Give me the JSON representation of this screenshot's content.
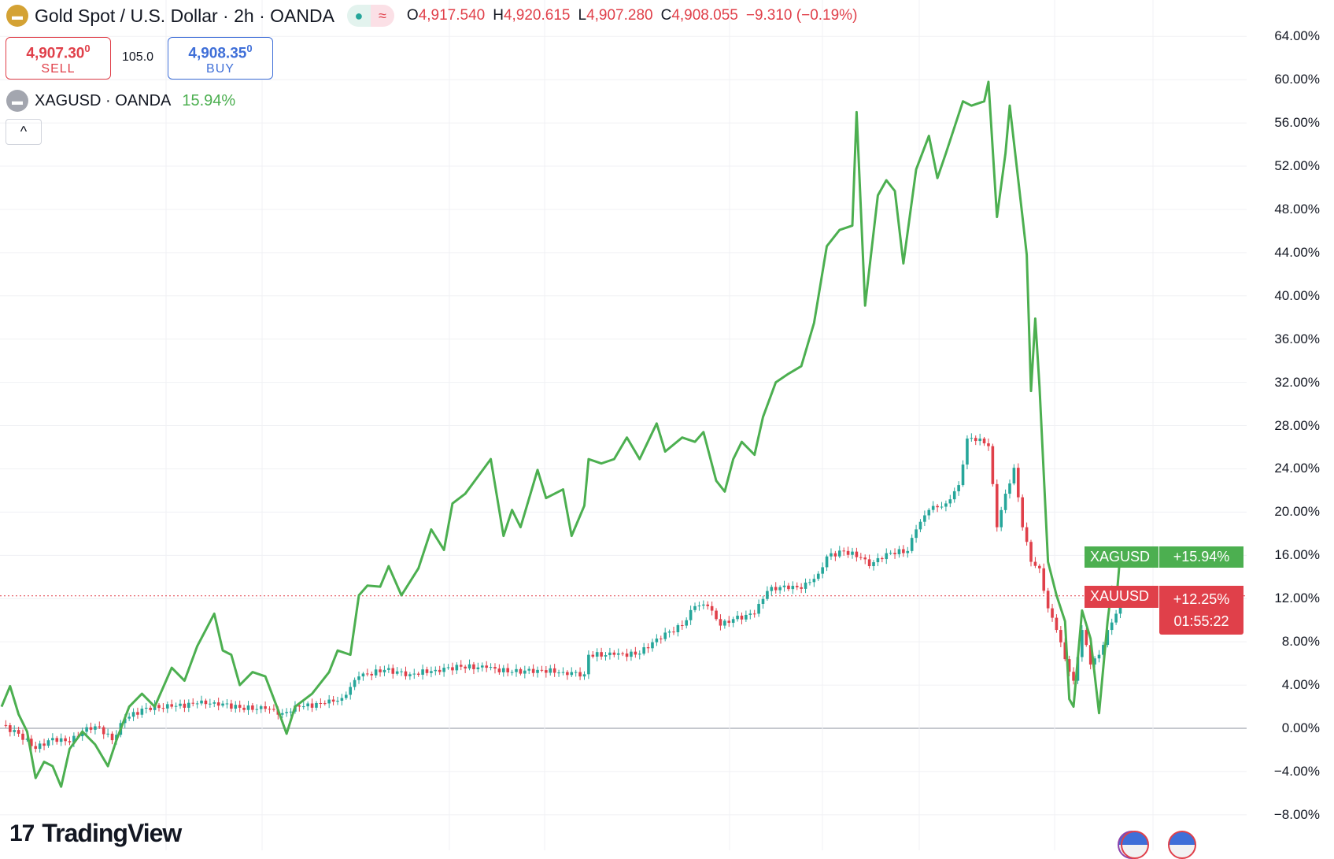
{
  "header": {
    "title": "Gold Spot / U.S. Dollar · 2h · OANDA",
    "open_label": "O",
    "open": "4,917.540",
    "high_label": "H",
    "high": "4,920.615",
    "low_label": "L",
    "low": "4,907.280",
    "close_label": "C",
    "close": "4,908.055",
    "change": "−9.310 (−0.19%)",
    "status_dot": "market-open-dot",
    "pill_icon": "≈"
  },
  "trade": {
    "sell_price": "4,907.30",
    "sell_sup": "0",
    "sell_label": "SELL",
    "spread": "105.0",
    "buy_price": "4,908.35",
    "buy_sup": "0",
    "buy_label": "BUY"
  },
  "compare": {
    "symbol": "XAGUSD · OANDA",
    "value": "15.94%"
  },
  "collapse_icon": "^",
  "badges": {
    "xag": {
      "symbol": "XAGUSD",
      "value": "+15.94%"
    },
    "xau": {
      "symbol": "XAUUSD",
      "value": "+12.25%",
      "countdown": "01:55:22"
    }
  },
  "brand": {
    "logo_text": "TV",
    "name": "TradingView"
  },
  "colors": {
    "silver": "#4caf50",
    "gold_up": "#26a69a",
    "gold_down": "#e0404a",
    "accent_red": "#e0404a",
    "accent_blue": "#3f6fd8"
  },
  "chart_data": {
    "type": "line",
    "yaxis": {
      "scale": "percent",
      "ylim": [
        -8,
        64
      ],
      "ticks": [
        "64.00%",
        "60.00%",
        "56.00%",
        "52.00%",
        "48.00%",
        "44.00%",
        "40.00%",
        "36.00%",
        "32.00%",
        "28.00%",
        "24.00%",
        "20.00%",
        "16.00%",
        "12.00%",
        "8.00%",
        "4.00%",
        "0.00%",
        "−4.00%",
        "−8.00%"
      ],
      "tick_values": [
        64,
        60,
        56,
        52,
        48,
        44,
        40,
        36,
        32,
        28,
        24,
        20,
        16,
        12,
        8,
        4,
        0,
        -4,
        -8
      ]
    },
    "grid": true,
    "series": [
      {
        "name": "XAGUSD",
        "style": "line",
        "points": [
          [
            0,
            2.0
          ],
          [
            2,
            3.9
          ],
          [
            4,
            1.3
          ],
          [
            6,
            -0.3
          ],
          [
            8,
            -4.6
          ],
          [
            10,
            -3.1
          ],
          [
            12,
            -3.5
          ],
          [
            14,
            -5.4
          ],
          [
            16,
            -1.9
          ],
          [
            19,
            -0.3
          ],
          [
            22,
            -1.5
          ],
          [
            25,
            -3.5
          ],
          [
            27,
            -1.1
          ],
          [
            30,
            2.0
          ],
          [
            33,
            3.2
          ],
          [
            36,
            2.0
          ],
          [
            40,
            5.6
          ],
          [
            43,
            4.4
          ],
          [
            46,
            7.6
          ],
          [
            48,
            9.1
          ],
          [
            50,
            10.6
          ],
          [
            52,
            7.2
          ],
          [
            54,
            6.8
          ],
          [
            56,
            4.0
          ],
          [
            59,
            5.2
          ],
          [
            62,
            4.8
          ],
          [
            65,
            1.7
          ],
          [
            67,
            -0.5
          ],
          [
            69,
            2.0
          ],
          [
            73,
            3.2
          ],
          [
            77,
            5.2
          ],
          [
            79,
            7.2
          ],
          [
            82,
            6.8
          ],
          [
            84,
            12.3
          ],
          [
            86,
            13.2
          ],
          [
            89,
            13.1
          ],
          [
            91,
            15.0
          ],
          [
            94,
            12.3
          ],
          [
            98,
            14.8
          ],
          [
            101,
            18.4
          ],
          [
            104,
            16.5
          ],
          [
            106,
            20.8
          ],
          [
            109,
            21.7
          ],
          [
            112,
            23.3
          ],
          [
            115,
            24.9
          ],
          [
            118,
            17.8
          ],
          [
            120,
            20.2
          ],
          [
            122,
            18.6
          ],
          [
            126,
            23.9
          ],
          [
            128,
            21.3
          ],
          [
            132,
            22.1
          ],
          [
            134,
            17.8
          ],
          [
            137,
            20.6
          ],
          [
            138,
            24.9
          ],
          [
            141,
            24.5
          ],
          [
            144,
            24.9
          ],
          [
            147,
            26.9
          ],
          [
            150,
            24.9
          ],
          [
            154,
            28.2
          ],
          [
            156,
            25.6
          ],
          [
            160,
            26.9
          ],
          [
            163,
            26.5
          ],
          [
            165,
            27.4
          ],
          [
            168,
            22.9
          ],
          [
            170,
            21.9
          ],
          [
            172,
            24.9
          ],
          [
            174,
            26.5
          ],
          [
            177,
            25.3
          ],
          [
            179,
            28.8
          ],
          [
            182,
            32.0
          ],
          [
            185,
            32.8
          ],
          [
            188,
            33.5
          ],
          [
            191,
            37.5
          ],
          [
            194,
            44.6
          ],
          [
            197,
            46.1
          ],
          [
            200,
            46.5
          ],
          [
            201,
            57.0
          ],
          [
            203,
            39.1
          ],
          [
            206,
            49.3
          ],
          [
            208,
            50.7
          ],
          [
            210,
            49.7
          ],
          [
            212,
            43.0
          ],
          [
            215,
            51.7
          ],
          [
            218,
            54.8
          ],
          [
            220,
            50.9
          ],
          [
            222,
            53.2
          ],
          [
            226,
            58.0
          ],
          [
            228,
            57.6
          ],
          [
            231,
            58.0
          ],
          [
            232,
            59.8
          ],
          [
            234,
            47.3
          ],
          [
            236,
            53.2
          ],
          [
            237,
            57.6
          ],
          [
            240,
            47.3
          ],
          [
            241,
            43.8
          ],
          [
            242,
            31.2
          ],
          [
            243,
            37.9
          ],
          [
            244,
            31.6
          ],
          [
            246,
            15.4
          ],
          [
            248,
            12.3
          ],
          [
            250,
            9.9
          ],
          [
            251,
            2.7
          ],
          [
            252,
            2.0
          ],
          [
            254,
            10.9
          ],
          [
            256,
            8.3
          ],
          [
            258,
            1.4
          ],
          [
            260,
            9.9
          ],
          [
            261,
            13.1
          ],
          [
            262,
            11.5
          ],
          [
            263,
            16.2
          ],
          [
            264,
            15.94
          ]
        ]
      },
      {
        "name": "XAUUSD",
        "style": "candles",
        "closes": [
          [
            0,
            0.3
          ],
          [
            4,
            -0.5
          ],
          [
            8,
            -1.9
          ],
          [
            12,
            -0.9
          ],
          [
            16,
            -1.3
          ],
          [
            20,
            0.1
          ],
          [
            23,
            0.1
          ],
          [
            26,
            -1.1
          ],
          [
            29,
            0.9
          ],
          [
            34,
            1.9
          ],
          [
            40,
            2.0
          ],
          [
            46,
            2.3
          ],
          [
            50,
            2.4
          ],
          [
            56,
            1.9
          ],
          [
            62,
            1.8
          ],
          [
            66,
            1.4
          ],
          [
            70,
            2.0
          ],
          [
            76,
            2.3
          ],
          [
            80,
            2.8
          ],
          [
            84,
            4.8
          ],
          [
            90,
            5.4
          ],
          [
            96,
            5.0
          ],
          [
            102,
            5.4
          ],
          [
            108,
            5.7
          ],
          [
            114,
            5.6
          ],
          [
            120,
            5.2
          ],
          [
            126,
            5.4
          ],
          [
            132,
            5.2
          ],
          [
            137,
            5.0
          ],
          [
            138,
            6.8
          ],
          [
            144,
            6.8
          ],
          [
            150,
            6.9
          ],
          [
            154,
            8.3
          ],
          [
            160,
            9.5
          ],
          [
            163,
            11.3
          ],
          [
            166,
            11.3
          ],
          [
            169,
            9.5
          ],
          [
            172,
            10.1
          ],
          [
            177,
            10.6
          ],
          [
            180,
            12.7
          ],
          [
            184,
            13.2
          ],
          [
            188,
            12.9
          ],
          [
            192,
            14.3
          ],
          [
            194,
            15.9
          ],
          [
            198,
            16.4
          ],
          [
            202,
            15.8
          ],
          [
            204,
            15.0
          ],
          [
            208,
            16.2
          ],
          [
            213,
            16.4
          ],
          [
            215,
            18.4
          ],
          [
            218,
            20.2
          ],
          [
            222,
            20.8
          ],
          [
            225,
            22.5
          ],
          [
            227,
            26.8
          ],
          [
            230,
            26.8
          ],
          [
            232,
            26.1
          ],
          [
            234,
            18.6
          ],
          [
            236,
            21.7
          ],
          [
            238,
            24.1
          ],
          [
            240,
            18.6
          ],
          [
            242,
            15.4
          ],
          [
            244,
            14.8
          ],
          [
            246,
            11.1
          ],
          [
            248,
            9.1
          ],
          [
            250,
            6.4
          ],
          [
            252,
            4.4
          ],
          [
            254,
            9.1
          ],
          [
            256,
            5.9
          ],
          [
            258,
            6.8
          ],
          [
            260,
            9.1
          ],
          [
            262,
            10.6
          ],
          [
            264,
            12.25
          ]
        ]
      }
    ]
  }
}
